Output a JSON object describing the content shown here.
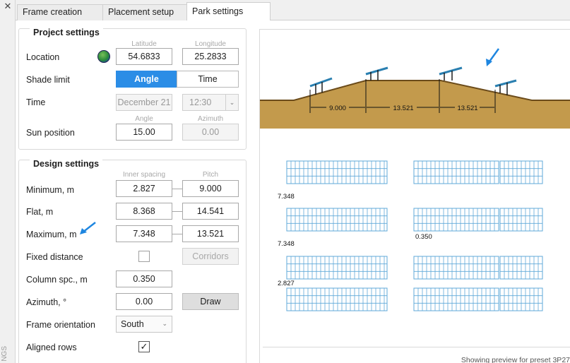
{
  "side_label": "NGS",
  "tabs": [
    "Frame creation",
    "Placement setup",
    "Park settings"
  ],
  "project": {
    "title": "Project settings",
    "headers": {
      "latitude": "Latitude",
      "longitude": "Longitude",
      "angle": "Angle",
      "azimuth": "Azimuth"
    },
    "location_label": "Location",
    "latitude": "54.6833",
    "longitude": "25.2833",
    "shade_label": "Shade limit",
    "shade_angle": "Angle",
    "shade_time": "Time",
    "time_label": "Time",
    "date_value": "December 21",
    "time_value": "12:30",
    "sun_label": "Sun position",
    "sun_angle": "15.00",
    "sun_azimuth": "0.00"
  },
  "design": {
    "title": "Design settings",
    "headers": {
      "inner": "Inner spacing",
      "pitch": "Pitch"
    },
    "min_label": "Minimum, m",
    "min_inner": "2.827",
    "min_pitch": "9.000",
    "flat_label": "Flat, m",
    "flat_inner": "8.368",
    "flat_pitch": "14.541",
    "max_label": "Maximum, m",
    "max_inner": "7.348",
    "max_pitch": "13.521",
    "fixed_label": "Fixed distance",
    "corridors_label": "Corridors",
    "column_label": "Column spc., m",
    "column_value": "0.350",
    "azimuth_label": "Azimuth, °",
    "azimuth_value": "0.00",
    "draw_label": "Draw",
    "orientation_label": "Frame orientation",
    "orientation_value": "South",
    "aligned_label": "Aligned rows"
  },
  "preview": {
    "profile_dims": [
      "9.000",
      "13.521",
      "13.521"
    ],
    "plan_labels": [
      "7.348",
      "0.350",
      "7.348",
      "2.827"
    ],
    "status": "Showing preview for preset 3P27"
  },
  "colors": {
    "accent": "#2b8de6",
    "terrain": "#c39a4c",
    "panel": "#2a7fb0",
    "module_grid": "#5fa8d8"
  }
}
